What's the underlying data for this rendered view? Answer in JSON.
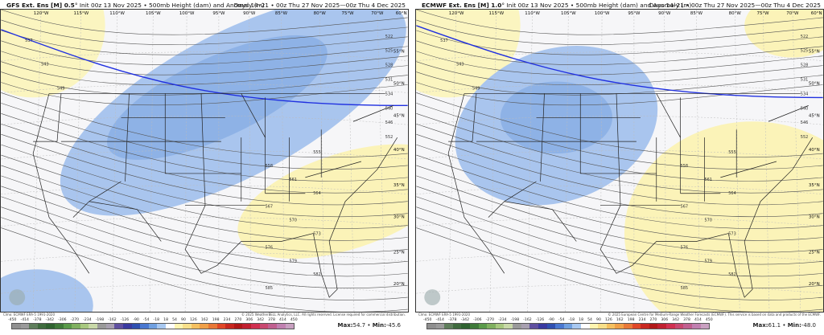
{
  "panels": [
    {
      "model": "GFS Ext.  Ens [M] 0.5",
      "init": "° Init 00z 13 Nov 2025 • 500mb Height (dam) and Anomaly (m)",
      "days": "Days 14–21 • 00z Thu 27 Nov 2025—00z Thu 4 Dec 2025",
      "clim": "Clmo: ECMWF ERA-5 1991-2020",
      "copyright": "© 2025 WeatherBELL Analytics, LLC. All rights reserved. License required for commercial distribution.",
      "max": "54.7",
      "min": "-45.6",
      "contour_labels": [
        "537",
        "543",
        "549",
        "522",
        "525",
        "528",
        "531",
        "534",
        "540",
        "546",
        "552",
        "555",
        "558",
        "561",
        "564",
        "567",
        "570",
        "573",
        "576",
        "579",
        "582",
        "585"
      ]
    },
    {
      "model": "ECMWF Ext.  Ens [M] 1.0",
      "init": "° Init 00z 13 Nov 2025 • 500mb Height (dam) and Anomaly (m)",
      "days": "Days 14–21 • 00z Thu 27 Nov 2025—00z Thu 4 Dec 2025",
      "clim": "Clmo: ECMWF ERA-5 1991-2020",
      "copyright": "© 2025 European Centre for Medium-Range Weather Forecasts (ECMWF). This service is based on data and products of the ECMWF.",
      "max": "61.1",
      "min": "-48.0",
      "contour_labels": [
        "537",
        "543",
        "549",
        "522",
        "525",
        "528",
        "531",
        "534",
        "540",
        "546",
        "552",
        "555",
        "558",
        "561",
        "564",
        "567",
        "570",
        "573",
        "576",
        "579",
        "582",
        "585"
      ]
    }
  ],
  "lon_labels": [
    "120°W",
    "115°W",
    "110°W",
    "105°W",
    "100°W",
    "95°W",
    "90°W",
    "85°W",
    "80°W",
    "75°W",
    "70°W",
    "60°N"
  ],
  "lat_labels": [
    "55°N",
    "50°N",
    "45°N",
    "40°N",
    "35°N",
    "30°N",
    "25°N",
    "20°N"
  ],
  "colorbar": {
    "ticks": [
      "-450",
      "-414",
      "-378",
      "-342",
      "-306",
      "-270",
      "-234",
      "-198",
      "-162",
      "-126",
      "-90",
      "-54",
      "-18",
      "18",
      "54",
      "90",
      "126",
      "162",
      "198",
      "234",
      "270",
      "306",
      "342",
      "378",
      "414",
      "450"
    ],
    "colors": [
      "#8f8f8f",
      "#9a9a9a",
      "#5f7e5c",
      "#3f6b3e",
      "#2f6230",
      "#3f7a3a",
      "#5a9a4a",
      "#80b060",
      "#a8c880",
      "#c8d8a8",
      "#9a9a9a",
      "#a8a0b0",
      "#6050a0",
      "#3a3aa0",
      "#3050b0",
      "#4a78d0",
      "#70a0e0",
      "#a8c8f0",
      "#ffffff",
      "#fff5b0",
      "#f8e08a",
      "#f5c060",
      "#f0a048",
      "#e87838",
      "#e04828",
      "#c82820",
      "#b01818",
      "#c02030",
      "#d03050",
      "#c84870",
      "#c06090",
      "#c080b0",
      "#c8a0c0"
    ]
  },
  "max_label": "Max:",
  "min_label": "Min:",
  "sep": " • "
}
